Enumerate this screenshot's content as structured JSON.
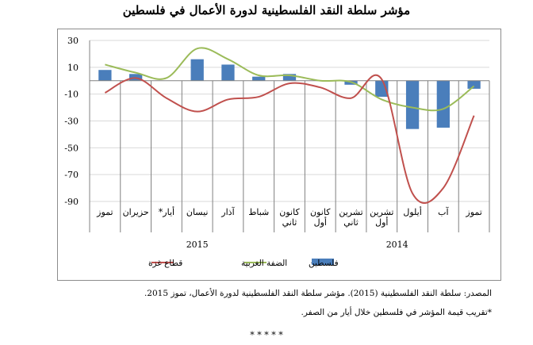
{
  "title": "مؤشر سلطة النقد الفلسطينية لدورة الأعمال في فلسطين",
  "source": "المصدر: سلطة النقد الفلسطينية (2015). مؤشر سلطة النقد الفلسطينية لدورة الأعمال، تموز 2015.",
  "footnote": "*تقريب قيمة المؤشر في فلسطين خلال أيار من الصفر.",
  "separator": "* * * * *",
  "colors": {
    "bars": "#4a7ebb",
    "west_bank": "#9bbb59",
    "gaza": "#c0504d",
    "grid": "#d9d9d9"
  },
  "chart_data": {
    "type": "bar+line",
    "categories": [
      "تموز",
      "آب",
      "أيلول",
      "تشرين أول",
      "تشرين ثاني",
      "كانون أول",
      "كانون ثاني",
      "شباط",
      "آذار",
      "نيسان",
      "أيار*",
      "حزيران",
      "تموز"
    ],
    "category_lines": [
      [
        "تموز"
      ],
      [
        "آب"
      ],
      [
        "أيلول"
      ],
      [
        "تشرين",
        "أول"
      ],
      [
        "تشرين",
        "ثاني"
      ],
      [
        "كانون",
        "أول"
      ],
      [
        "كانون",
        "ثاني"
      ],
      [
        "شباط"
      ],
      [
        "آذار"
      ],
      [
        "نيسان"
      ],
      [
        "أيار*"
      ],
      [
        "حزيران"
      ],
      [
        "تموز"
      ]
    ],
    "year_groups": [
      {
        "label": "2014",
        "from": 0,
        "to": 5
      },
      {
        "label": "2015",
        "from": 6,
        "to": 12
      }
    ],
    "ylim": [
      -90,
      30
    ],
    "yticks": [
      30,
      10,
      -10,
      -30,
      -50,
      -70,
      -90
    ],
    "series": [
      {
        "name": "فلسطين",
        "kind": "bar",
        "values": [
          -6,
          -35,
          -36,
          -12,
          -3,
          0,
          5,
          3,
          12,
          16,
          0,
          5,
          8
        ]
      },
      {
        "name": "الضفة الغربية",
        "kind": "line",
        "values": [
          -4,
          -21,
          -20,
          -14,
          -1,
          0,
          4,
          4,
          16,
          24,
          2,
          6,
          12
        ]
      },
      {
        "name": "قطاع غزة",
        "kind": "line",
        "values": [
          -26,
          -80,
          -84,
          1,
          -13,
          -5,
          -2,
          -12,
          -14,
          -23,
          -13,
          2,
          -9
        ]
      }
    ],
    "legend_position": "bottom"
  }
}
